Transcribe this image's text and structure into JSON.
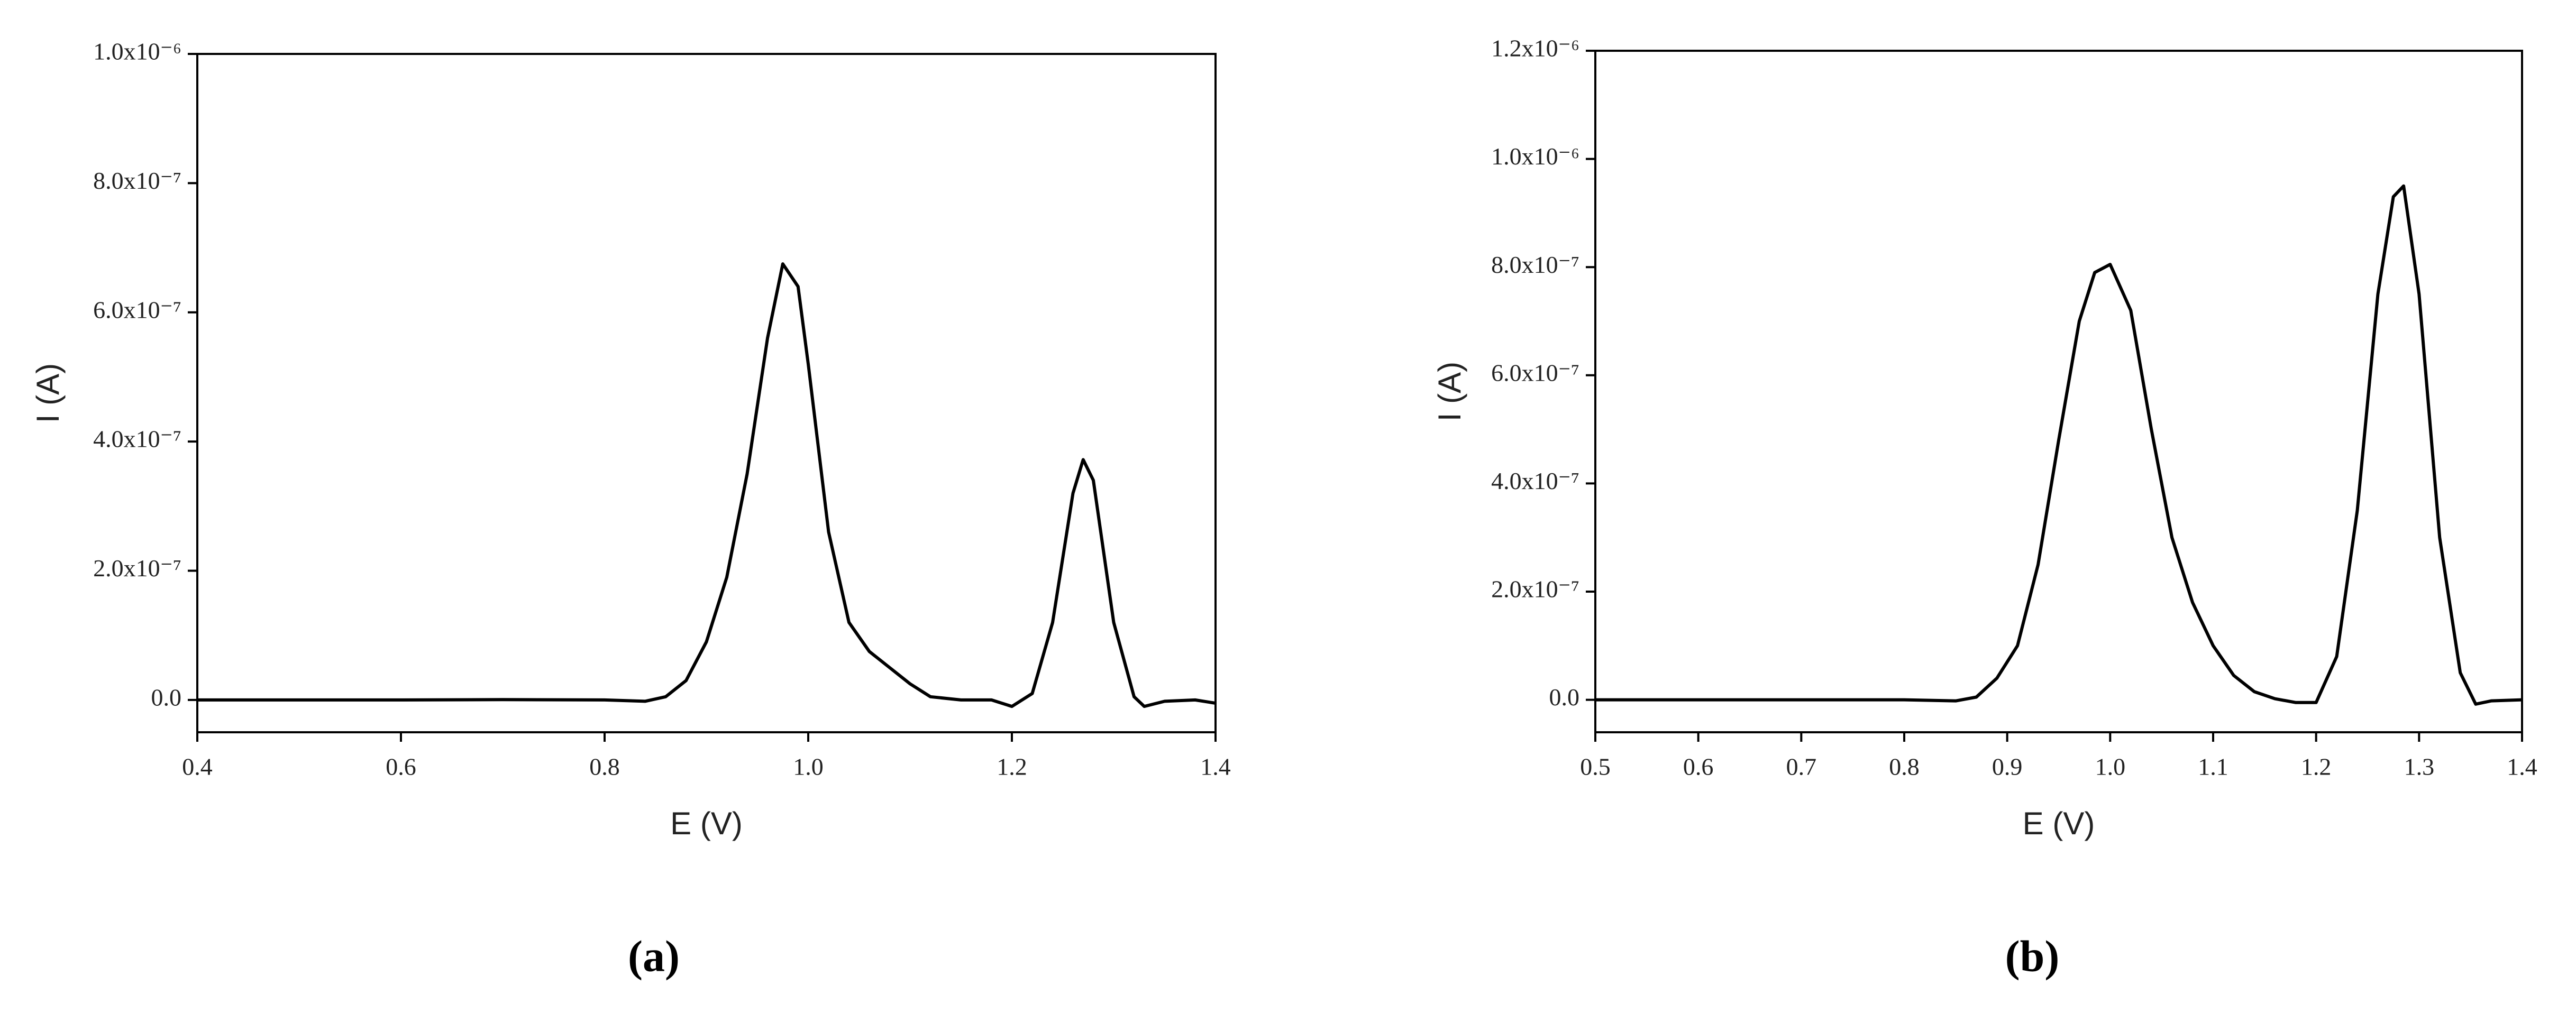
{
  "chart_data": [
    {
      "type": "line",
      "panel_label": "(a)",
      "x_label": "E (V)",
      "y_label": "I (A)",
      "color": "#000000",
      "xlim": [
        0.4,
        1.4
      ],
      "xticks": [
        0.4,
        0.6,
        0.8,
        {
          "value": 1,
          "label": "1.0"
        },
        1.2,
        1.4
      ],
      "ylim": [
        -5e-08,
        1e-06
      ],
      "yticks": [
        {
          "value": 0,
          "label": "0.0"
        },
        {
          "value": 2e-07,
          "label": "2.0x10⁻⁷"
        },
        {
          "value": 4e-07,
          "label": "4.0x10⁻⁷"
        },
        {
          "value": 6e-07,
          "label": "6.0x10⁻⁷"
        },
        {
          "value": 8e-07,
          "label": "8.0x10⁻⁷"
        },
        {
          "value": 1e-06,
          "label": "1.0x10⁻⁶"
        }
      ],
      "x": [
        0.4,
        0.6,
        0.7,
        0.8,
        0.84,
        0.86,
        0.88,
        0.9,
        0.92,
        0.94,
        0.96,
        0.975,
        0.99,
        1.0,
        1.02,
        1.04,
        1.06,
        1.08,
        1.1,
        1.12,
        1.15,
        1.18,
        1.2,
        1.22,
        1.24,
        1.26,
        1.27,
        1.28,
        1.3,
        1.32,
        1.33,
        1.35,
        1.38,
        1.4
      ],
      "values": [
        0,
        0,
        5e-10,
        0,
        -2e-09,
        5e-09,
        3e-08,
        9e-08,
        1.9e-07,
        3.5e-07,
        5.6e-07,
        6.75e-07,
        6.4e-07,
        5.2e-07,
        2.6e-07,
        1.2e-07,
        7.5e-08,
        5e-08,
        2.5e-08,
        5e-09,
        0,
        0,
        -1e-08,
        1e-08,
        1.2e-07,
        3.2e-07,
        3.72e-07,
        3.4e-07,
        1.2e-07,
        5e-09,
        -1e-08,
        -2e-09,
        0,
        -5e-09
      ]
    },
    {
      "type": "line",
      "panel_label": "(b)",
      "x_label": "E (V)",
      "y_label": "I (A)",
      "color": "#000000",
      "xlim": [
        0.5,
        1.4
      ],
      "xticks": [
        0.5,
        0.6,
        0.7,
        0.8,
        0.9,
        {
          "value": 1,
          "label": "1.0"
        },
        1.1,
        1.2,
        1.3,
        1.4
      ],
      "ylim": [
        -6e-08,
        1.2e-06
      ],
      "yticks": [
        {
          "value": 0,
          "label": "0.0"
        },
        {
          "value": 2e-07,
          "label": "2.0x10⁻⁷"
        },
        {
          "value": 4e-07,
          "label": "4.0x10⁻⁷"
        },
        {
          "value": 6e-07,
          "label": "6.0x10⁻⁷"
        },
        {
          "value": 8e-07,
          "label": "8.0x10⁻⁷"
        },
        {
          "value": 1e-06,
          "label": "1.0x10⁻⁶"
        },
        {
          "value": 1.2e-06,
          "label": "1.2x10⁻⁶"
        }
      ],
      "x": [
        0.5,
        0.8,
        0.85,
        0.87,
        0.89,
        0.91,
        0.93,
        0.95,
        0.97,
        0.985,
        1.0,
        1.02,
        1.04,
        1.06,
        1.08,
        1.1,
        1.12,
        1.14,
        1.16,
        1.18,
        1.2,
        1.22,
        1.24,
        1.26,
        1.275,
        1.285,
        1.3,
        1.32,
        1.34,
        1.355,
        1.37,
        1.4
      ],
      "values": [
        0,
        0,
        -2e-09,
        5e-09,
        4e-08,
        1e-07,
        2.5e-07,
        4.8e-07,
        7e-07,
        7.9e-07,
        8.05e-07,
        7.2e-07,
        5e-07,
        3e-07,
        1.8e-07,
        1e-07,
        4.5e-08,
        1.5e-08,
        2e-09,
        -5e-09,
        -5e-09,
        8e-08,
        3.5e-07,
        7.5e-07,
        9.3e-07,
        9.5e-07,
        7.5e-07,
        3e-07,
        5e-08,
        -8e-09,
        -2e-09,
        0
      ]
    }
  ]
}
